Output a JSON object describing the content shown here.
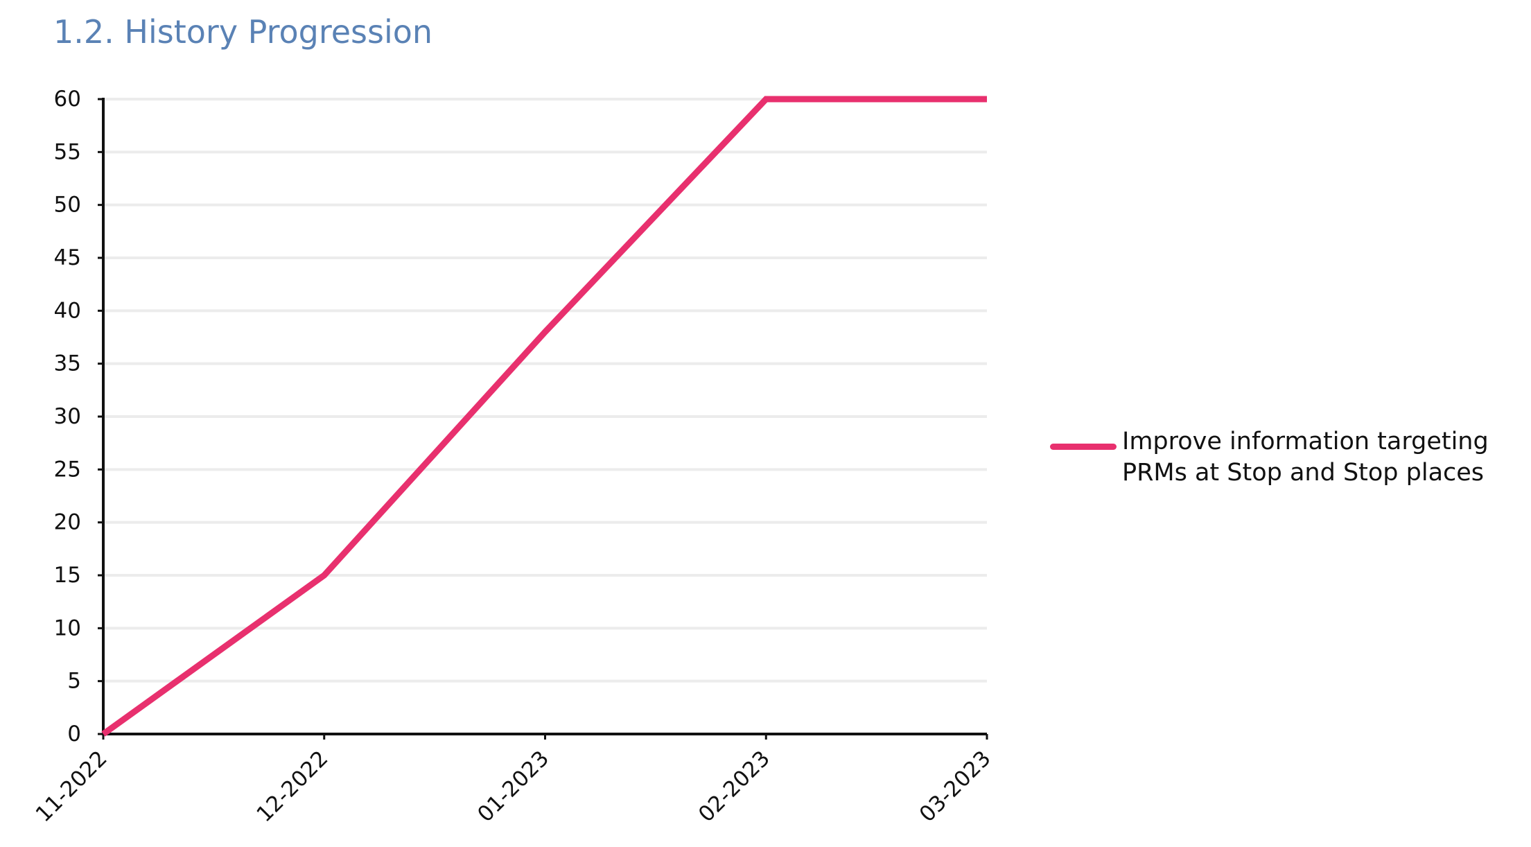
{
  "page": {
    "title": "1.2. History Progression"
  },
  "chart_data": {
    "type": "line",
    "title": "",
    "xlabel": "",
    "ylabel": "",
    "categories": [
      "11-2022",
      "12-2022",
      "01-2023",
      "02-2023",
      "03-2023"
    ],
    "series": [
      {
        "name": "Improve information targeting PRMs at Stop and Stop places",
        "color": "#e8306e",
        "values": [
          0,
          15,
          38,
          60,
          60
        ]
      }
    ],
    "ylim": [
      0,
      60
    ],
    "yticks": [
      0,
      5,
      10,
      15,
      20,
      25,
      30,
      35,
      40,
      45,
      50,
      55,
      60
    ],
    "grid": true,
    "legend_position": "right"
  }
}
